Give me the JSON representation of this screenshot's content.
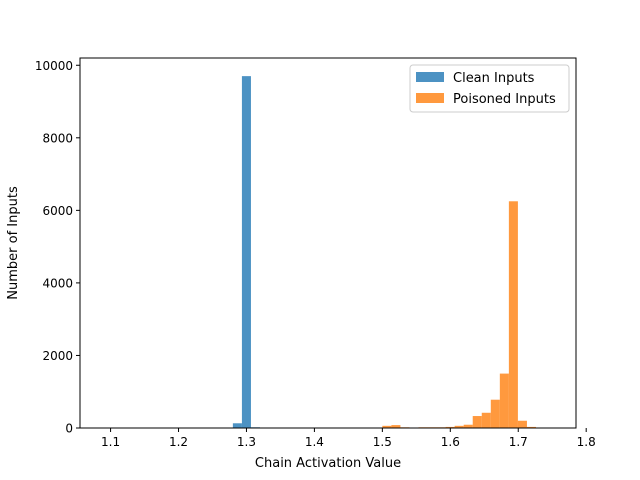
{
  "chart_data": {
    "type": "bar",
    "title": "",
    "xlabel": "Chain Activation Value",
    "ylabel": "Number of Inputs",
    "xlim": [
      1.055,
      1.785
    ],
    "ylim": [
      0,
      10200
    ],
    "x_ticks": [
      1.1,
      1.2,
      1.3,
      1.4,
      1.5,
      1.6,
      1.7,
      1.8
    ],
    "x_tick_labels": [
      "1.1",
      "1.2",
      "1.3",
      "1.4",
      "1.5",
      "1.6",
      "1.7",
      "1.8"
    ],
    "y_ticks": [
      0,
      2000,
      4000,
      6000,
      8000,
      10000
    ],
    "y_tick_labels": [
      "0",
      "2000",
      "4000",
      "6000",
      "8000",
      "10000"
    ],
    "bin_width": 0.0133,
    "grid": false,
    "legend": "top-right",
    "series": [
      {
        "name": "Clean Inputs",
        "color": "#1f77b4",
        "bins": [
          {
            "x0": 1.28,
            "count": 130
          },
          {
            "x0": 1.2933,
            "count": 9700
          },
          {
            "x0": 1.3066,
            "count": 20
          }
        ]
      },
      {
        "name": "Poisoned Inputs",
        "color": "#ff7f0e",
        "bins": [
          {
            "x0": 1.5,
            "count": 60
          },
          {
            "x0": 1.5133,
            "count": 80
          },
          {
            "x0": 1.5266,
            "count": 20
          },
          {
            "x0": 1.5532,
            "count": 20
          },
          {
            "x0": 1.5665,
            "count": 20
          },
          {
            "x0": 1.5798,
            "count": 20
          },
          {
            "x0": 1.5931,
            "count": 30
          },
          {
            "x0": 1.6064,
            "count": 60
          },
          {
            "x0": 1.6197,
            "count": 90
          },
          {
            "x0": 1.633,
            "count": 330
          },
          {
            "x0": 1.6463,
            "count": 420
          },
          {
            "x0": 1.6596,
            "count": 780
          },
          {
            "x0": 1.6729,
            "count": 1500
          },
          {
            "x0": 1.6862,
            "count": 6250
          },
          {
            "x0": 1.6995,
            "count": 200
          },
          {
            "x0": 1.7128,
            "count": 30
          }
        ]
      }
    ]
  }
}
